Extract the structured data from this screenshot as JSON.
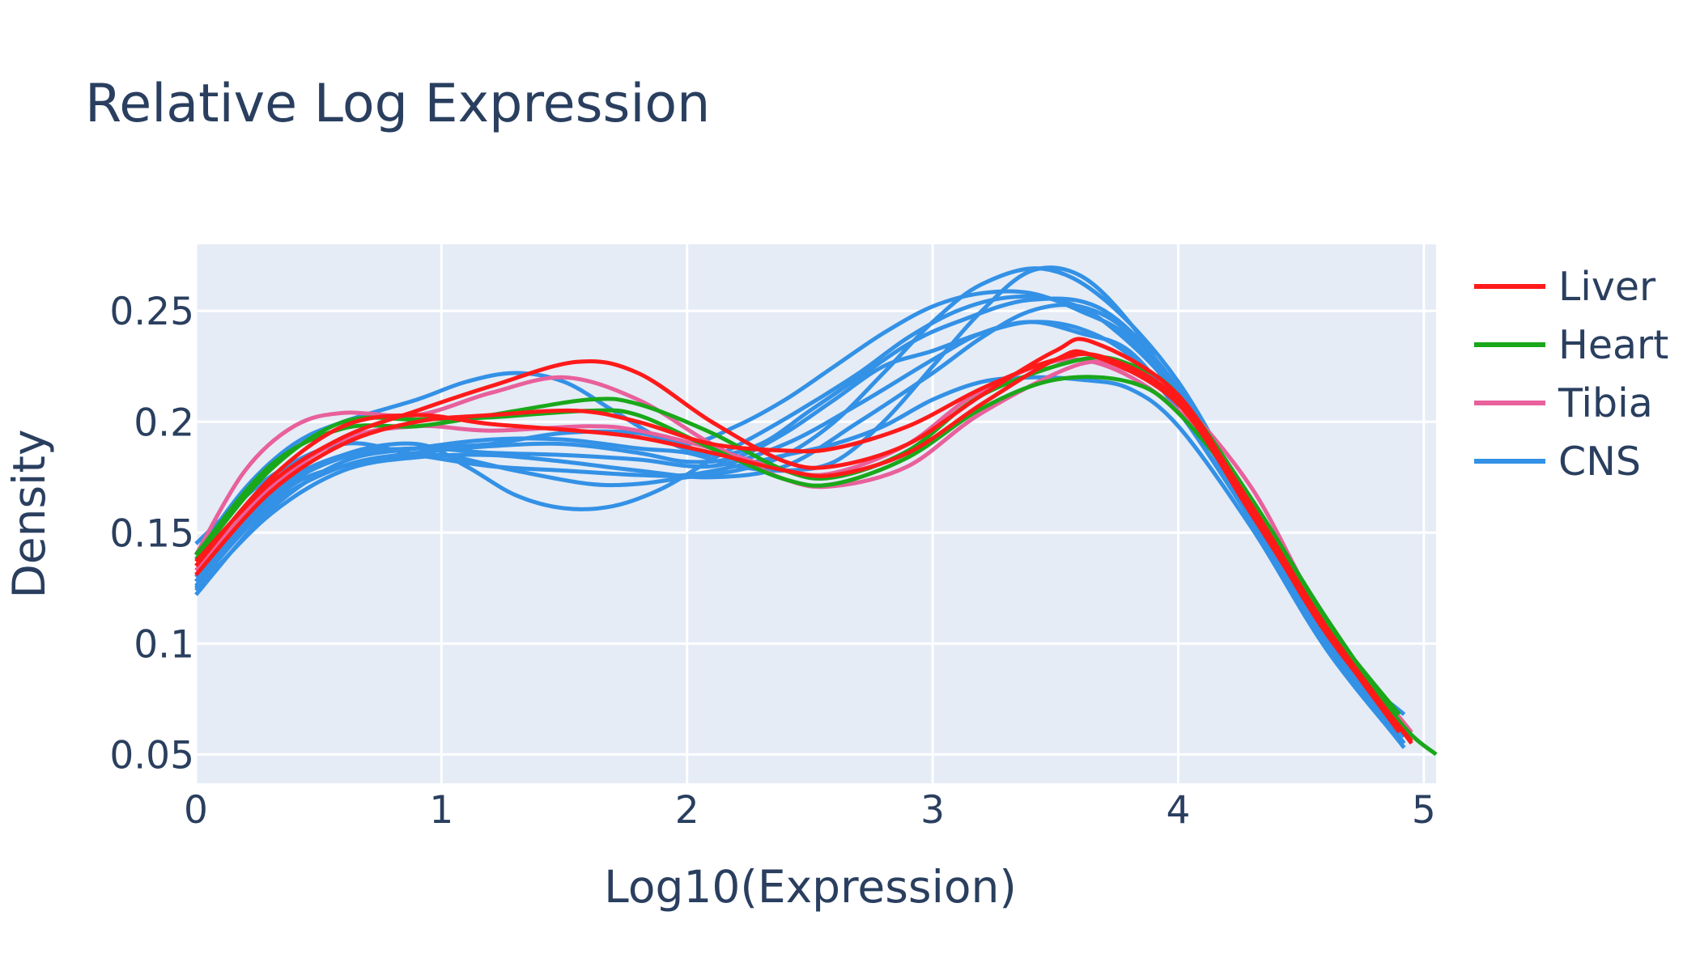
{
  "chart_data": {
    "type": "line",
    "title": "Relative Log Expression",
    "xlabel": "Log10(Expression)",
    "ylabel": "Density",
    "xlim": [
      0,
      5.05
    ],
    "ylim": [
      0.037,
      0.28
    ],
    "x_ticks": [
      "0",
      "1",
      "2",
      "3",
      "4",
      "5"
    ],
    "y_ticks": [
      "0.05",
      "0.1",
      "0.15",
      "0.2",
      "0.25"
    ],
    "grid": true,
    "legend_position": "top-right",
    "colors": {
      "Liver": "#ff1a1a",
      "Heart": "#1aa81a",
      "Tibia": "#e8609c",
      "CNS": "#3391e6",
      "plot_bg": "#e5ecf6"
    },
    "legend": [
      "Liver",
      "Heart",
      "Tibia",
      "CNS"
    ],
    "series": [
      {
        "name": "Liver",
        "x": [
          0,
          0.3,
          0.6,
          0.9,
          1.2,
          1.55,
          1.8,
          2.1,
          2.4,
          2.6,
          2.9,
          3.2,
          3.5,
          3.7,
          4.0,
          4.3,
          4.6,
          4.95
        ],
        "y": [
          0.131,
          0.168,
          0.19,
          0.2,
          0.203,
          0.205,
          0.2,
          0.19,
          0.187,
          0.188,
          0.198,
          0.215,
          0.228,
          0.229,
          0.21,
          0.162,
          0.108,
          0.055
        ]
      },
      {
        "name": "Liver",
        "x": [
          0,
          0.3,
          0.6,
          0.9,
          1.2,
          1.55,
          1.8,
          2.1,
          2.4,
          2.6,
          2.9,
          3.2,
          3.5,
          3.65,
          4.0,
          4.3,
          4.6,
          4.95
        ],
        "y": [
          0.137,
          0.172,
          0.193,
          0.205,
          0.216,
          0.227,
          0.222,
          0.2,
          0.182,
          0.18,
          0.19,
          0.212,
          0.232,
          0.236,
          0.212,
          0.16,
          0.105,
          0.056
        ]
      },
      {
        "name": "Liver",
        "x": [
          0,
          0.3,
          0.6,
          0.9,
          1.2,
          1.55,
          1.8,
          2.1,
          2.4,
          2.6,
          2.9,
          3.2,
          3.5,
          3.65,
          4.0,
          4.3,
          4.6,
          4.9
        ],
        "y": [
          0.135,
          0.174,
          0.198,
          0.203,
          0.199,
          0.196,
          0.193,
          0.186,
          0.178,
          0.176,
          0.186,
          0.208,
          0.228,
          0.23,
          0.208,
          0.158,
          0.106,
          0.06
        ]
      },
      {
        "name": "Heart",
        "x": [
          0,
          0.3,
          0.6,
          0.9,
          1.2,
          1.6,
          1.8,
          2.1,
          2.4,
          2.6,
          2.9,
          3.2,
          3.6,
          3.8,
          4.0,
          4.3,
          4.6,
          4.9,
          5.05
        ],
        "y": [
          0.14,
          0.18,
          0.197,
          0.198,
          0.203,
          0.21,
          0.208,
          0.195,
          0.178,
          0.175,
          0.187,
          0.212,
          0.228,
          0.226,
          0.212,
          0.165,
          0.112,
          0.065,
          0.05
        ]
      },
      {
        "name": "Heart",
        "x": [
          0,
          0.3,
          0.6,
          0.9,
          1.2,
          1.6,
          1.8,
          2.1,
          2.4,
          2.6,
          2.9,
          3.2,
          3.5,
          3.8,
          4.0,
          4.3,
          4.6,
          4.9
        ],
        "y": [
          0.138,
          0.178,
          0.2,
          0.201,
          0.202,
          0.205,
          0.203,
          0.188,
          0.174,
          0.172,
          0.184,
          0.206,
          0.219,
          0.218,
          0.204,
          0.163,
          0.11,
          0.068
        ]
      },
      {
        "name": "Tibia",
        "x": [
          0,
          0.2,
          0.4,
          0.6,
          0.9,
          1.2,
          1.5,
          1.8,
          2.1,
          2.4,
          2.6,
          2.9,
          3.2,
          3.6,
          3.8,
          4.0,
          4.3,
          4.6,
          4.95
        ],
        "y": [
          0.14,
          0.178,
          0.198,
          0.204,
          0.203,
          0.213,
          0.22,
          0.21,
          0.19,
          0.174,
          0.171,
          0.18,
          0.204,
          0.226,
          0.223,
          0.21,
          0.17,
          0.11,
          0.06
        ]
      },
      {
        "name": "Tibia",
        "x": [
          0,
          0.3,
          0.6,
          0.9,
          1.2,
          1.6,
          1.8,
          2.1,
          2.4,
          2.6,
          2.9,
          3.2,
          3.6,
          4.0,
          4.3,
          4.6,
          4.9
        ],
        "y": [
          0.133,
          0.17,
          0.192,
          0.198,
          0.196,
          0.198,
          0.196,
          0.188,
          0.178,
          0.177,
          0.19,
          0.214,
          0.228,
          0.205,
          0.16,
          0.108,
          0.064
        ]
      },
      {
        "name": "CNS",
        "x": [
          0,
          0.2,
          0.4,
          0.6,
          0.9,
          1.1,
          1.3,
          1.5,
          1.7,
          1.9,
          2.1,
          2.3,
          2.5,
          2.7,
          2.9,
          3.1,
          3.4,
          3.7,
          4.0,
          4.3,
          4.6,
          4.92
        ],
        "y": [
          0.14,
          0.17,
          0.19,
          0.2,
          0.21,
          0.218,
          0.222,
          0.218,
          0.205,
          0.192,
          0.185,
          0.19,
          0.205,
          0.22,
          0.235,
          0.245,
          0.255,
          0.25,
          0.215,
          0.158,
          0.1,
          0.055
        ]
      },
      {
        "name": "CNS",
        "x": [
          0,
          0.2,
          0.4,
          0.6,
          0.8,
          1.0,
          1.3,
          1.6,
          1.8,
          2.0,
          2.2,
          2.4,
          2.6,
          2.8,
          3.0,
          3.2,
          3.45,
          3.7,
          4.0,
          4.3,
          4.6,
          4.92
        ],
        "y": [
          0.125,
          0.152,
          0.172,
          0.18,
          0.183,
          0.185,
          0.178,
          0.172,
          0.172,
          0.175,
          0.178,
          0.185,
          0.2,
          0.222,
          0.245,
          0.262,
          0.269,
          0.255,
          0.218,
          0.16,
          0.1,
          0.053
        ]
      },
      {
        "name": "CNS",
        "x": [
          0,
          0.3,
          0.6,
          0.9,
          1.1,
          1.3,
          1.5,
          1.7,
          1.9,
          2.1,
          2.3,
          2.5,
          2.7,
          2.9,
          3.1,
          3.3,
          3.5,
          3.7,
          4.0,
          4.3,
          4.6,
          4.92
        ],
        "y": [
          0.128,
          0.165,
          0.185,
          0.19,
          0.18,
          0.167,
          0.161,
          0.162,
          0.17,
          0.183,
          0.195,
          0.208,
          0.222,
          0.238,
          0.25,
          0.256,
          0.255,
          0.245,
          0.212,
          0.158,
          0.102,
          0.06
        ]
      },
      {
        "name": "CNS",
        "x": [
          0,
          0.3,
          0.6,
          0.9,
          1.2,
          1.5,
          1.8,
          2.0,
          2.2,
          2.4,
          2.6,
          2.8,
          3.0,
          3.2,
          3.4,
          3.6,
          3.8,
          4.0,
          4.3,
          4.6,
          4.9
        ],
        "y": [
          0.13,
          0.168,
          0.185,
          0.188,
          0.19,
          0.195,
          0.195,
          0.19,
          0.198,
          0.21,
          0.225,
          0.24,
          0.252,
          0.258,
          0.258,
          0.25,
          0.238,
          0.21,
          0.16,
          0.105,
          0.066
        ]
      },
      {
        "name": "CNS",
        "x": [
          0,
          0.3,
          0.6,
          0.9,
          1.2,
          1.5,
          1.8,
          2.0,
          2.2,
          2.4,
          2.6,
          2.8,
          3.0,
          3.2,
          3.4,
          3.6,
          3.8,
          4.0,
          4.3,
          4.6,
          4.92
        ],
        "y": [
          0.126,
          0.162,
          0.18,
          0.186,
          0.189,
          0.19,
          0.186,
          0.182,
          0.184,
          0.195,
          0.21,
          0.225,
          0.232,
          0.24,
          0.245,
          0.242,
          0.23,
          0.205,
          0.155,
          0.1,
          0.068
        ]
      },
      {
        "name": "CNS",
        "x": [
          0,
          0.3,
          0.6,
          0.9,
          1.2,
          1.5,
          1.8,
          2.0,
          2.2,
          2.4,
          2.6,
          2.8,
          3.0,
          3.2,
          3.4,
          3.6,
          3.8,
          4.0,
          4.3,
          4.6,
          4.9
        ],
        "y": [
          0.145,
          0.175,
          0.19,
          0.185,
          0.18,
          0.178,
          0.176,
          0.176,
          0.18,
          0.185,
          0.19,
          0.198,
          0.21,
          0.218,
          0.22,
          0.219,
          0.215,
          0.198,
          0.152,
          0.098,
          0.056
        ]
      },
      {
        "name": "CNS",
        "x": [
          0,
          0.3,
          0.6,
          0.9,
          1.2,
          1.5,
          1.8,
          2.0,
          2.2,
          2.4,
          2.6,
          2.8,
          3.0,
          3.2,
          3.4,
          3.6,
          3.8,
          4.0,
          4.3,
          4.6,
          4.92
        ],
        "y": [
          0.122,
          0.16,
          0.182,
          0.188,
          0.192,
          0.192,
          0.188,
          0.186,
          0.18,
          0.178,
          0.182,
          0.2,
          0.225,
          0.25,
          0.268,
          0.266,
          0.245,
          0.212,
          0.158,
          0.102,
          0.06
        ]
      },
      {
        "name": "CNS",
        "x": [
          0,
          0.3,
          0.6,
          0.9,
          1.2,
          1.5,
          1.8,
          2.1,
          2.4,
          2.7,
          3.0,
          3.2,
          3.4,
          3.6,
          3.8,
          4.0,
          4.3,
          4.6,
          4.92
        ],
        "y": [
          0.128,
          0.166,
          0.184,
          0.188,
          0.186,
          0.185,
          0.183,
          0.18,
          0.19,
          0.208,
          0.228,
          0.24,
          0.245,
          0.24,
          0.232,
          0.205,
          0.156,
          0.1,
          0.058
        ]
      },
      {
        "name": "CNS",
        "x": [
          0,
          0.3,
          0.6,
          0.9,
          1.2,
          1.5,
          1.8,
          2.1,
          2.4,
          2.7,
          3.0,
          3.2,
          3.4,
          3.6,
          3.8,
          4.0,
          4.3,
          4.6,
          4.92
        ],
        "y": [
          0.124,
          0.158,
          0.178,
          0.184,
          0.185,
          0.182,
          0.178,
          0.175,
          0.18,
          0.2,
          0.222,
          0.238,
          0.25,
          0.252,
          0.24,
          0.21,
          0.158,
          0.1,
          0.06
        ]
      }
    ]
  }
}
